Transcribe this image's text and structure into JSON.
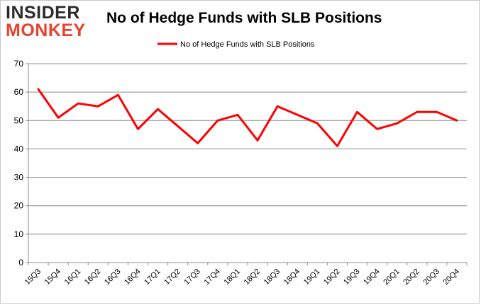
{
  "logo": {
    "line1": "INSIDER",
    "line2": "MONKEY"
  },
  "chart_data": {
    "type": "line",
    "title": "No of Hedge Funds with SLB Positions",
    "categories": [
      "15Q3",
      "15Q4",
      "16Q1",
      "16Q2",
      "16Q3",
      "16Q4",
      "17Q1",
      "17Q2",
      "17Q3",
      "17Q4",
      "18Q1",
      "18Q2",
      "18Q3",
      "18Q4",
      "19Q1",
      "19Q2",
      "19Q3",
      "19Q4",
      "20Q1",
      "20Q2",
      "20Q3",
      "20Q4"
    ],
    "series": [
      {
        "name": "No of Hedge Funds with SLB Positions",
        "color": "#ff0000",
        "values": [
          61,
          51,
          56,
          55,
          59,
          47,
          54,
          48,
          42,
          50,
          52,
          43,
          55,
          52,
          49,
          41,
          53,
          47,
          49,
          53,
          53,
          50
        ]
      }
    ],
    "ylim": [
      0,
      70
    ],
    "yticks": [
      0,
      10,
      20,
      30,
      40,
      50,
      60,
      70
    ],
    "grid": true,
    "legend_position": "top"
  }
}
